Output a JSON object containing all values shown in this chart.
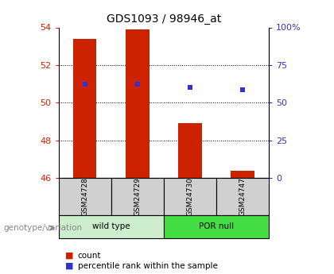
{
  "title": "GDS1093 / 98946_at",
  "samples": [
    "GSM24728",
    "GSM24729",
    "GSM24730",
    "GSM24747"
  ],
  "bar_bottom": 46,
  "count_values": [
    53.4,
    53.9,
    48.9,
    46.4
  ],
  "percentile_values": [
    51.0,
    51.0,
    50.8,
    50.7
  ],
  "ylim_left": [
    46,
    54
  ],
  "ylim_right": [
    0,
    100
  ],
  "yticks_left": [
    46,
    48,
    50,
    52,
    54
  ],
  "yticks_right": [
    0,
    25,
    50,
    75,
    100
  ],
  "ytick_labels_right": [
    "0",
    "25",
    "50",
    "75",
    "100%"
  ],
  "bar_color": "#CC2200",
  "dot_color": "#3333CC",
  "bar_width": 0.45,
  "legend_count_label": "count",
  "legend_pct_label": "percentile rank within the sample",
  "xlabel_group": "genotype/variation",
  "group_label_wild": "wild type",
  "group_label_por": "POR null",
  "wild_type_color": "#cceecc",
  "por_null_color": "#44dd44",
  "sample_box_color": "#d0d0d0"
}
